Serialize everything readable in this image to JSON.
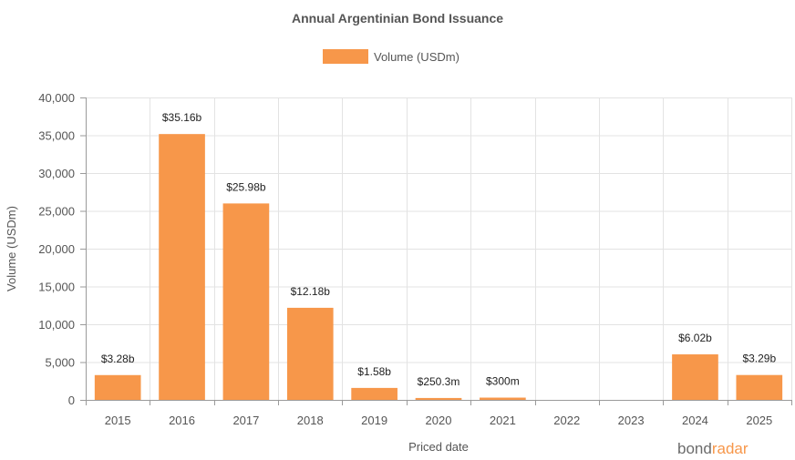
{
  "chart_data": {
    "type": "bar",
    "title": "Annual Argentinian Bond Issuance",
    "xlabel": "Priced date",
    "ylabel": "Volume (USDm)",
    "series_name": "Volume (USDm)",
    "categories": [
      "2015",
      "2016",
      "2017",
      "2018",
      "2019",
      "2020",
      "2021",
      "2022",
      "2023",
      "2024",
      "2025"
    ],
    "values": [
      3280,
      35160,
      25980,
      12180,
      1580,
      250.3,
      300,
      0,
      0,
      6020,
      3290
    ],
    "data_labels": [
      "$3.28b",
      "$35.16b",
      "$25.98b",
      "$12.18b",
      "$1.58b",
      "$250.3m",
      "$300m",
      "",
      "",
      "$6.02b",
      "$3.29b"
    ],
    "ylim": [
      0,
      40000
    ],
    "yticks": [
      0,
      5000,
      10000,
      15000,
      20000,
      25000,
      30000,
      35000,
      40000
    ],
    "ytick_labels": [
      "0",
      "5,000",
      "10,000",
      "15,000",
      "20,000",
      "25,000",
      "30,000",
      "35,000",
      "40,000"
    ],
    "grid": true,
    "legend_position": "top-center",
    "bar_color": "#f7974a"
  },
  "logo": {
    "part1": "bond",
    "part2": "radar"
  }
}
